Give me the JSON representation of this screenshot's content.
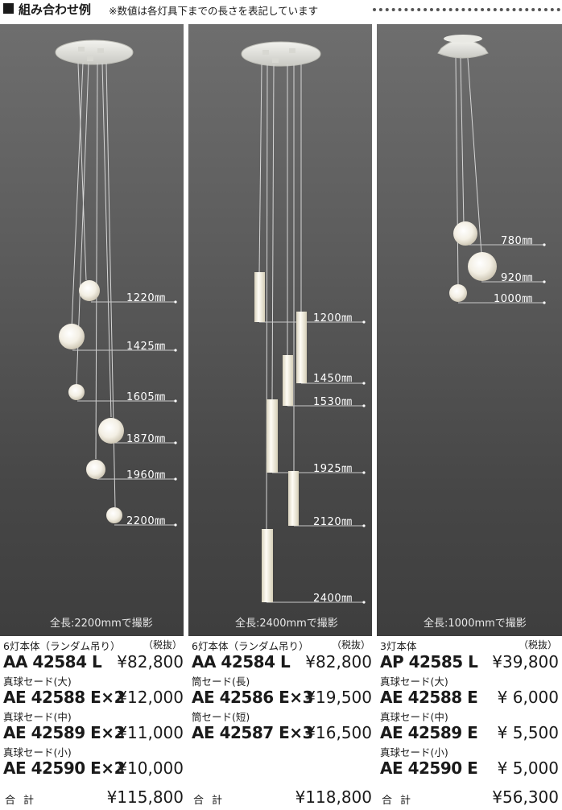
{
  "header": {
    "title": "組み合わせ例",
    "note": "※数値は各灯具下までの長さを表記しています"
  },
  "panels": [
    {
      "caption": "全長:2200mmで撮影",
      "measurements": [
        "1220㎜",
        "1425㎜",
        "1605㎜",
        "1870㎜",
        "1960㎜",
        "2200㎜"
      ]
    },
    {
      "caption": "全長:2400mmで撮影",
      "measurements": [
        "1200㎜",
        "1450㎜",
        "1530㎜",
        "1925㎜",
        "2120㎜",
        "2400㎜"
      ]
    },
    {
      "caption": "全長:1000mmで撮影",
      "measurements": [
        "780㎜",
        "920㎜",
        "1000㎜"
      ]
    }
  ],
  "specs": [
    {
      "body_label": "6灯本体（ランダム吊り）",
      "tax_label": "（税抜）",
      "body_code": "AA 42584 L",
      "body_price": "¥82,800",
      "parts": [
        {
          "label": "真球セード(大)",
          "code": "AE 42588 E×2",
          "price": "¥12,000"
        },
        {
          "label": "真球セード(中)",
          "code": "AE 42589 E×2",
          "price": "¥11,000"
        },
        {
          "label": "真球セード(小)",
          "code": "AE 42590 E×2",
          "price": "¥10,000"
        }
      ],
      "total_label": "合計",
      "total_price": "¥115,800"
    },
    {
      "body_label": "6灯本体（ランダム吊り）",
      "tax_label": "（税抜）",
      "body_code": "AA 42584 L",
      "body_price": "¥82,800",
      "parts": [
        {
          "label": "筒セード(長)",
          "code": "AE 42586 E×3",
          "price": "¥19,500"
        },
        {
          "label": "筒セード(短)",
          "code": "AE 42587 E×3",
          "price": "¥16,500"
        }
      ],
      "total_label": "合計",
      "total_price": "¥118,800"
    },
    {
      "body_label": "3灯本体",
      "tax_label": "（税抜）",
      "body_code": "AP 42585 L",
      "body_price": "¥39,800",
      "parts": [
        {
          "label": "真球セード(大)",
          "code": "AE 42588 E",
          "price": "¥ 6,000"
        },
        {
          "label": "真球セード(中)",
          "code": "AE 42589 E",
          "price": "¥ 5,500"
        },
        {
          "label": "真球セード(小)",
          "code": "AE 42590 E",
          "price": "¥ 5,000"
        }
      ],
      "total_label": "合計",
      "total_price": "¥56,300"
    }
  ]
}
